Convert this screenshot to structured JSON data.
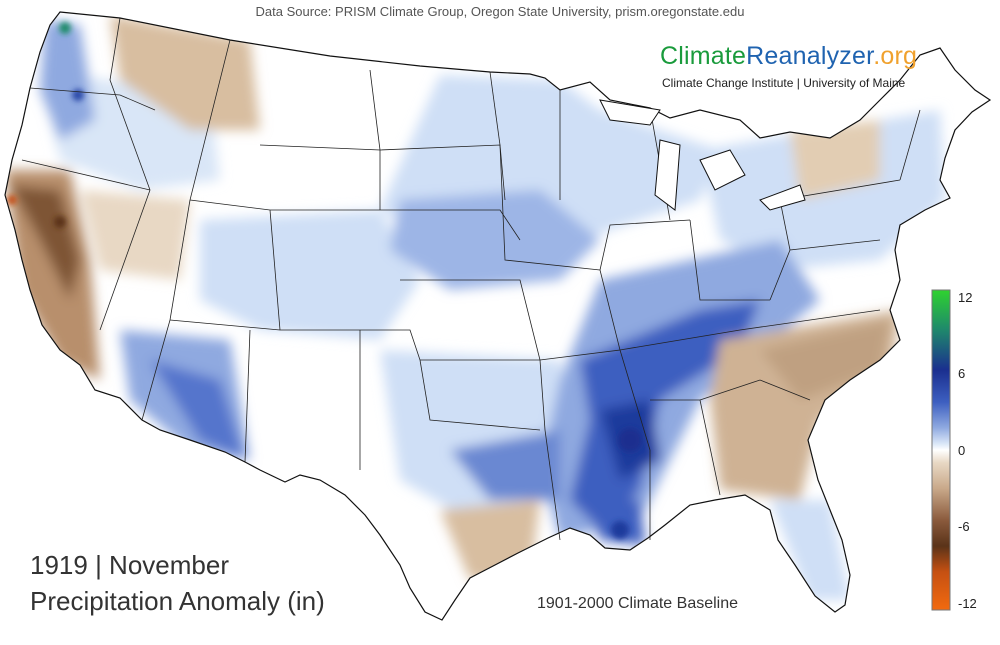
{
  "header": {
    "data_source": "Data Source: PRISM Climate Group, Oregon State University, prism.oregonstate.edu",
    "brand_part1": "Climate",
    "brand_part2": "Reanalyzer",
    "brand_part3": ".org",
    "affiliation": "Climate Change Institute | University of Maine"
  },
  "title": {
    "line1": "1919 | November",
    "line2": "Precipitation Anomaly (in)"
  },
  "baseline": "1901-2000 Climate Baseline",
  "colorbar": {
    "ticks": [
      "12",
      "6",
      "0",
      "-6",
      "-12"
    ],
    "colors": [
      "#2fd22f",
      "#1f8b6a",
      "#1a2f8f",
      "#3d5fc0",
      "#8fa9e0",
      "#d9e6f7",
      "#ffffff",
      "#e8d8c4",
      "#c9a98a",
      "#8a5a3c",
      "#5a3319",
      "#c55012",
      "#f26a10"
    ]
  },
  "anomaly_regions": [
    {
      "name": "Pacific Northwest coast",
      "type": "wet",
      "level": "moderate"
    },
    {
      "name": "California",
      "type": "dry",
      "level": "moderate"
    },
    {
      "name": "Arizona",
      "type": "wet",
      "level": "moderate"
    },
    {
      "name": "Central Plains",
      "type": "wet",
      "level": "slight"
    },
    {
      "name": "Lower Mississippi Valley",
      "type": "wet",
      "level": "strong"
    },
    {
      "name": "Ohio / Tennessee Valley",
      "type": "wet",
      "level": "strong"
    },
    {
      "name": "Carolinas and Georgia",
      "type": "dry",
      "level": "moderate"
    },
    {
      "name": "South Texas",
      "type": "dry",
      "level": "slight"
    },
    {
      "name": "Upper Midwest",
      "type": "wet",
      "level": "slight"
    },
    {
      "name": "Idaho / Montana Rockies",
      "type": "dry",
      "level": "slight"
    }
  ]
}
